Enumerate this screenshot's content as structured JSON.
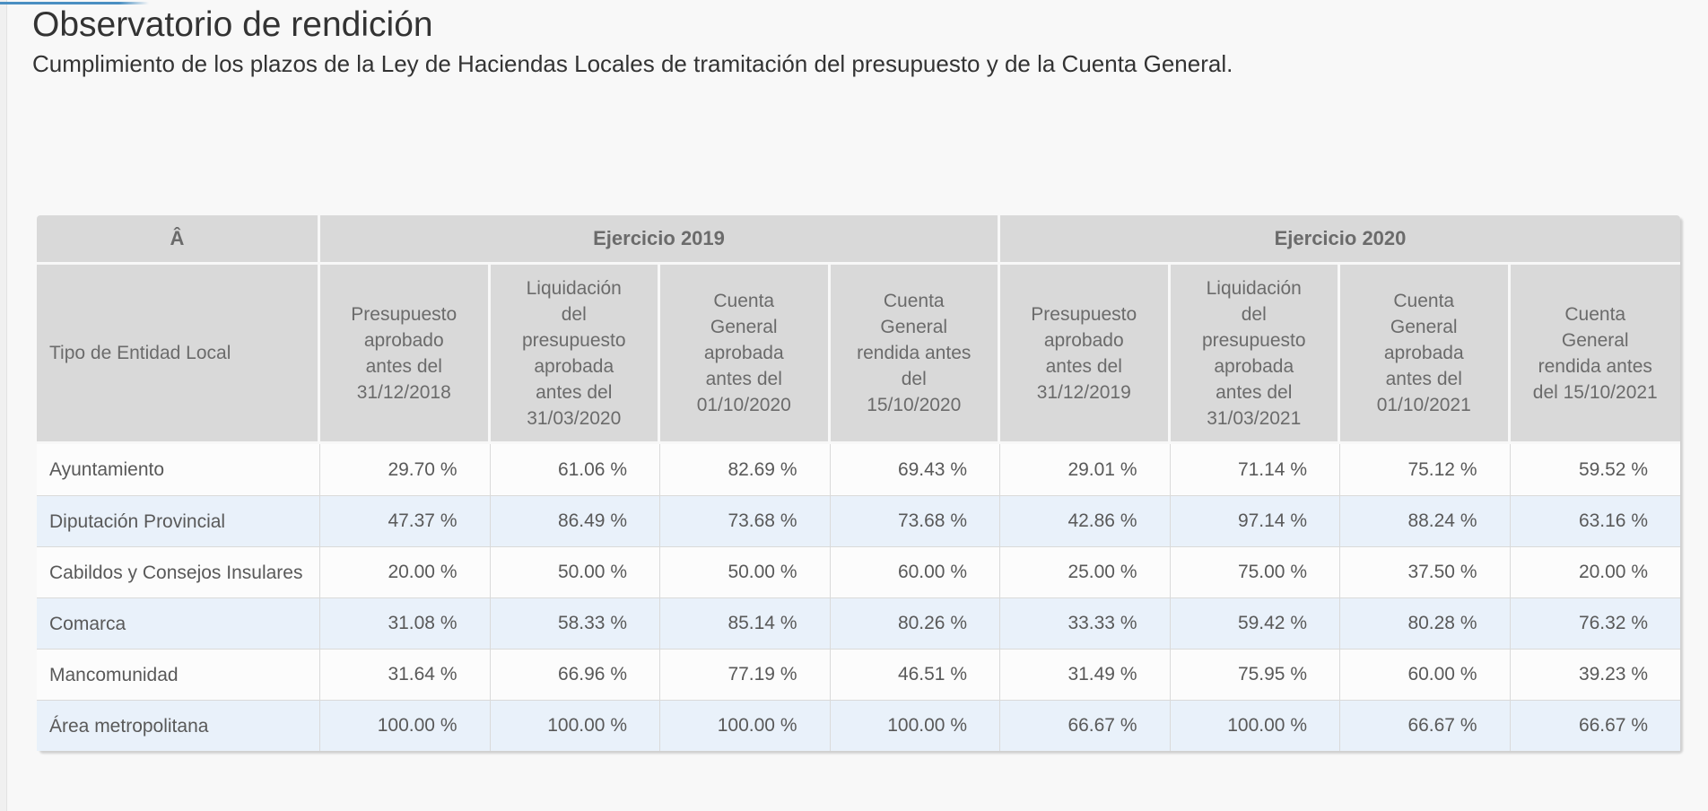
{
  "page": {
    "title": "Observatorio de rendición",
    "subtitle": "Cumplimiento de los plazos de la Ley de Haciendas Locales de tramitación del presupuesto y de la Cuenta General.",
    "colors": {
      "accent_line": "#4a8fc2",
      "header_bg": "#d9d9d9",
      "header_text": "#6b6b6b",
      "alt_row_bg": "#e9f1fa",
      "body_text": "#595959"
    }
  },
  "table": {
    "corner_label": "Â",
    "row_header_label": "Tipo de Entidad Local",
    "group_headers": [
      "Ejercicio 2019",
      "Ejercicio 2020"
    ],
    "column_headers": [
      "Presupuesto aprobado antes del 31/12/2018",
      "Liquidación del presupuesto aprobada antes del 31/03/2020",
      "Cuenta General aprobada antes del 01/10/2020",
      "Cuenta General rendida antes del 15/10/2020",
      "Presupuesto aprobado antes del 31/12/2019",
      "Liquidación del presupuesto aprobada antes del 31/03/2021",
      "Cuenta General aprobada antes del 01/10/2021",
      "Cuenta General rendida antes del 15/10/2021"
    ],
    "rows": [
      {
        "label": "Ayuntamiento",
        "values": [
          "29.70 %",
          "61.06 %",
          "82.69 %",
          "69.43 %",
          "29.01 %",
          "71.14 %",
          "75.12 %",
          "59.52 %"
        ]
      },
      {
        "label": "Diputación Provincial",
        "values": [
          "47.37 %",
          "86.49 %",
          "73.68 %",
          "73.68 %",
          "42.86 %",
          "97.14 %",
          "88.24 %",
          "63.16 %"
        ]
      },
      {
        "label": "Cabildos y Consejos Insulares",
        "values": [
          "20.00 %",
          "50.00 %",
          "50.00 %",
          "60.00 %",
          "25.00 %",
          "75.00 %",
          "37.50 %",
          "20.00 %"
        ]
      },
      {
        "label": "Comarca",
        "values": [
          "31.08 %",
          "58.33 %",
          "85.14 %",
          "80.26 %",
          "33.33 %",
          "59.42 %",
          "80.28 %",
          "76.32 %"
        ]
      },
      {
        "label": "Mancomunidad",
        "values": [
          "31.64 %",
          "66.96 %",
          "77.19 %",
          "46.51 %",
          "31.49 %",
          "75.95 %",
          "60.00 %",
          "39.23 %"
        ]
      },
      {
        "label": "Área metropolitana",
        "values": [
          "100.00 %",
          "100.00 %",
          "100.00 %",
          "100.00 %",
          "66.67 %",
          "100.00 %",
          "66.67 %",
          "66.67 %"
        ]
      }
    ]
  }
}
